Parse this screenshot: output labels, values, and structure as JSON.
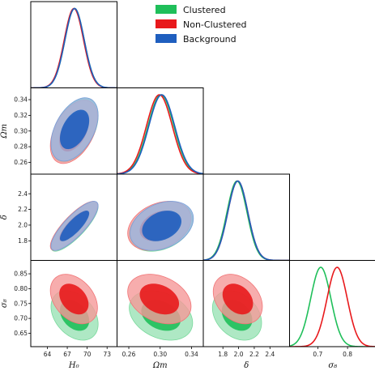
{
  "chart_data": {
    "type": "triangle-corner",
    "title": "",
    "params": [
      {
        "key": "H0",
        "label": "H₀",
        "range": [
          61.5,
          74.5
        ],
        "ticks": [
          "64",
          "67",
          "70",
          "73"
        ],
        "tickvals": [
          64,
          67,
          70,
          73
        ]
      },
      {
        "key": "Om",
        "label": "Ωm",
        "range": [
          0.245,
          0.355
        ],
        "ticks": [
          "0.26",
          "0.30",
          "0.34"
        ],
        "tickvals": [
          0.26,
          0.3,
          0.34
        ]
      },
      {
        "key": "delta",
        "label": "δ",
        "range": [
          1.55,
          2.65
        ],
        "ticks": [
          "1.8",
          "2.0",
          "2.2",
          "2.4"
        ],
        "tickvals": [
          1.8,
          2.0,
          2.2,
          2.4
        ]
      },
      {
        "key": "s8",
        "label": "σ₈",
        "range": [
          0.605,
          0.895
        ],
        "ticks": [
          "0.7",
          "0.8"
        ],
        "tickvals": [
          0.7,
          0.8
        ]
      }
    ],
    "y_ticks": {
      "Om": [
        "0.26",
        "0.28",
        "0.30",
        "0.32",
        "0.34"
      ],
      "delta": [
        "1.8",
        "2.0",
        "2.2",
        "2.4"
      ],
      "s8": [
        "0.65",
        "0.70",
        "0.75",
        "0.80",
        "0.85"
      ]
    },
    "y_tickvals": {
      "Om": [
        0.26,
        0.28,
        0.3,
        0.32,
        0.34
      ],
      "delta": [
        1.8,
        2.0,
        2.2,
        2.4
      ],
      "s8": [
        0.65,
        0.7,
        0.75,
        0.8,
        0.85
      ]
    },
    "series": [
      {
        "name": "Clustered",
        "color": "#1fbf5a",
        "mean": {
          "H0": 68.1,
          "Om": 0.301,
          "delta": 1.98,
          "s8": 0.71
        },
        "sigma": {
          "H0": 1.45,
          "Om": 0.0165,
          "delta": 0.128,
          "s8": 0.034
        }
      },
      {
        "name": "Non-Clustered",
        "color": "#e8191c",
        "mean": {
          "H0": 68.0,
          "Om": 0.299,
          "delta": 1.99,
          "s8": 0.765
        },
        "sigma": {
          "H0": 1.45,
          "Om": 0.0165,
          "delta": 0.128,
          "s8": 0.034
        }
      },
      {
        "name": "Background",
        "color": "#1f5fbf",
        "mean": {
          "H0": 68.1,
          "Om": 0.302,
          "delta": 1.99
        },
        "sigma": {
          "H0": 1.45,
          "Om": 0.0165,
          "delta": 0.128
        }
      }
    ],
    "correlations": {
      "H0|Om": 0.45,
      "H0|delta": 0.82,
      "Om|delta": 0.3,
      "H0|s8": -0.35,
      "Om|s8": -0.3,
      "delta|s8": -0.3
    },
    "legend": {
      "position": "top-center",
      "entries": [
        "Clustered",
        "Non-Clustered",
        "Background"
      ]
    }
  }
}
